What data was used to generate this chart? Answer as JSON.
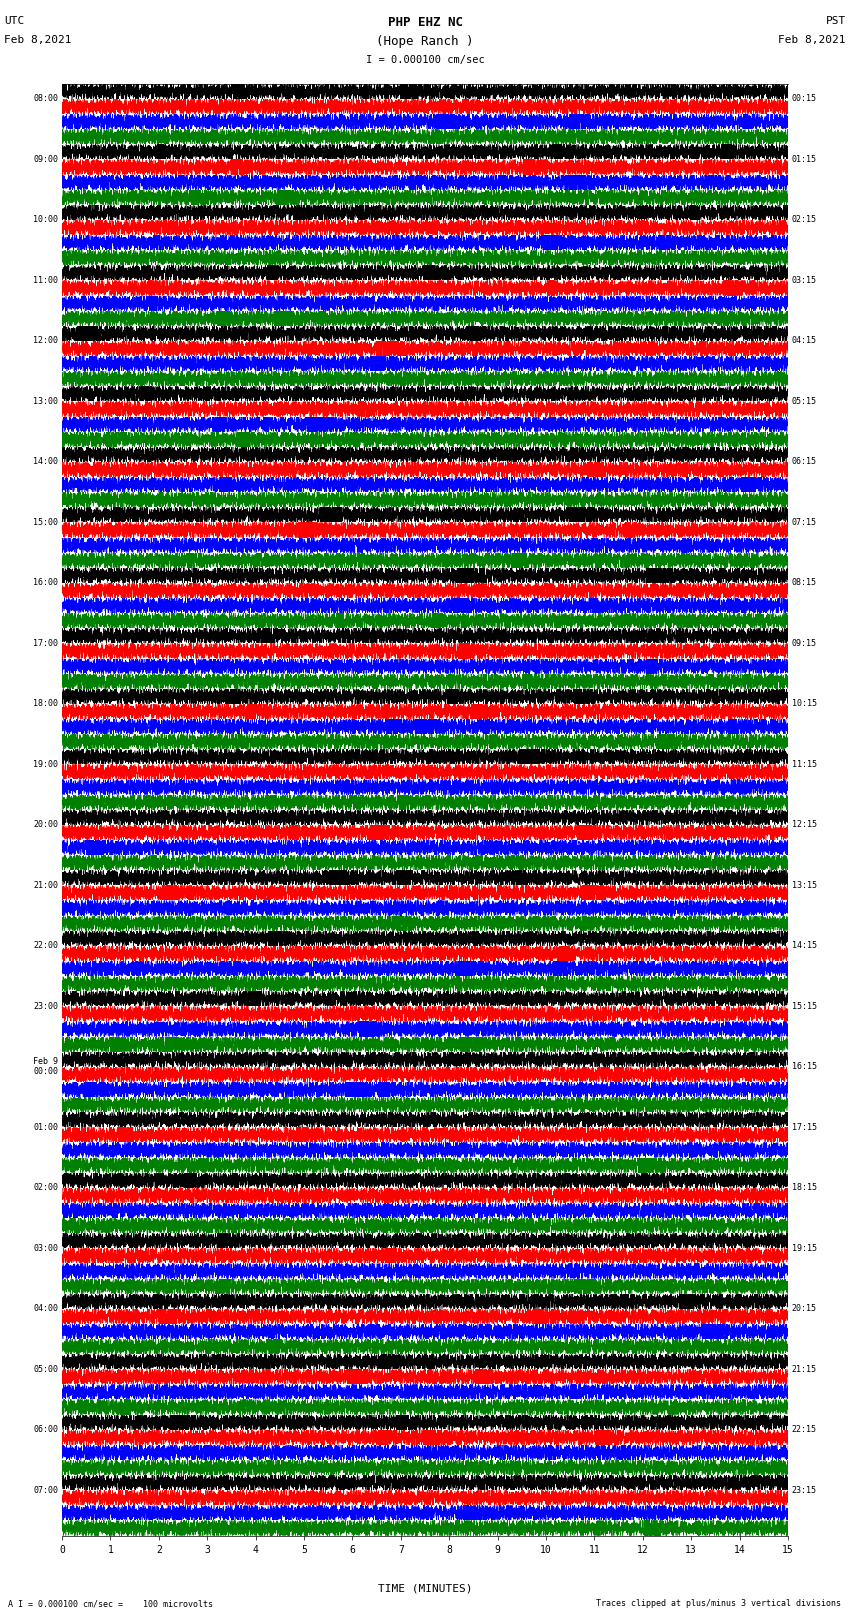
{
  "title_line1": "PHP EHZ NC",
  "title_line2": "(Hope Ranch )",
  "scale_label": "I = 0.000100 cm/sec",
  "utc_label": "UTC",
  "pst_label": "PST",
  "date_left": "Feb 8,2021",
  "date_right": "Feb 8,2021",
  "bottom_label1": "A I = 0.000100 cm/sec =    100 microvolts",
  "bottom_label2": "Traces clipped at plus/minus 3 vertical divisions",
  "xlabel": "TIME (MINUTES)",
  "xticks": [
    0,
    1,
    2,
    3,
    4,
    5,
    6,
    7,
    8,
    9,
    10,
    11,
    12,
    13,
    14,
    15
  ],
  "xmin": 0,
  "xmax": 15,
  "colors_pattern": [
    "black",
    "blue",
    "green",
    "black",
    "red",
    "blue",
    "green"
  ],
  "background_color": "#ffffff",
  "n_rows": 96,
  "utc_times_map": {
    "0": "08:00",
    "4": "09:00",
    "8": "10:00",
    "12": "11:00",
    "16": "12:00",
    "20": "13:00",
    "24": "14:00",
    "28": "15:00",
    "32": "16:00",
    "36": "17:00",
    "40": "18:00",
    "44": "19:00",
    "48": "20:00",
    "52": "21:00",
    "56": "22:00",
    "60": "23:00",
    "64": "Feb 9\n00:00",
    "68": "01:00",
    "72": "02:00",
    "76": "03:00",
    "80": "04:00",
    "84": "05:00",
    "88": "06:00",
    "92": "07:00"
  },
  "pst_times_map": {
    "0": "00:15",
    "4": "01:15",
    "8": "02:15",
    "12": "03:15",
    "16": "04:15",
    "20": "05:15",
    "24": "06:15",
    "28": "07:15",
    "32": "08:15",
    "36": "09:15",
    "40": "10:15",
    "44": "11:15",
    "48": "12:15",
    "52": "13:15",
    "56": "14:15",
    "60": "15:15",
    "64": "16:15",
    "68": "17:15",
    "72": "18:15",
    "76": "19:15",
    "80": "20:15",
    "84": "21:15",
    "88": "22:15",
    "92": "23:15"
  },
  "seed": 42
}
